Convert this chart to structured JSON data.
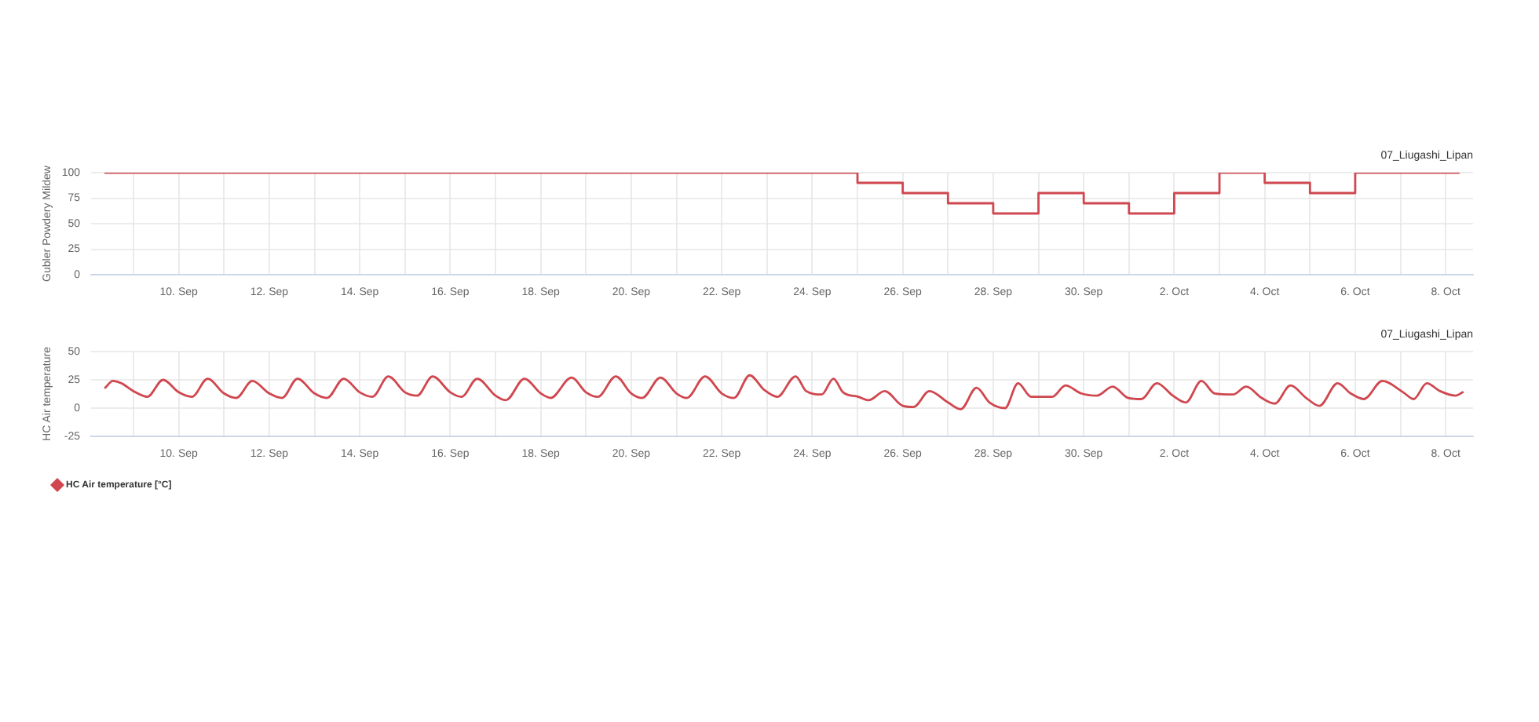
{
  "chart_data": [
    {
      "type": "step",
      "title": "07_Liugashi_Lipan",
      "ylabel": "Gubler Powdery Mildew",
      "color": "#d0474f",
      "x": [
        "--09-08T09:00",
        "--09-25",
        "--09-26",
        "--09-27",
        "--09-28",
        "--09-29",
        "--09-30",
        "--10-01",
        "--10-02",
        "--10-03",
        "--10-04",
        "--10-05",
        "--10-06",
        "--10-08T07:00"
      ],
      "values": [
        100,
        90,
        80,
        70,
        60,
        80,
        70,
        60,
        80,
        100,
        90,
        80,
        100,
        100
      ],
      "xlim": [
        "--09-08T01:30",
        "--10-08T14:30"
      ],
      "xticks": [
        {
          "value": "--09-09",
          "label": null
        },
        {
          "value": "--09-10",
          "label": "10. Sep"
        },
        {
          "value": "--09-11",
          "label": null
        },
        {
          "value": "--09-12",
          "label": "12. Sep"
        },
        {
          "value": "--09-13",
          "label": null
        },
        {
          "value": "--09-14",
          "label": "14. Sep"
        },
        {
          "value": "--09-15",
          "label": null
        },
        {
          "value": "--09-16",
          "label": "16. Sep"
        },
        {
          "value": "--09-17",
          "label": null
        },
        {
          "value": "--09-18",
          "label": "18. Sep"
        },
        {
          "value": "--09-19",
          "label": null
        },
        {
          "value": "--09-20",
          "label": "20. Sep"
        },
        {
          "value": "--09-21",
          "label": null
        },
        {
          "value": "--09-22",
          "label": "22. Sep"
        },
        {
          "value": "--09-23",
          "label": null
        },
        {
          "value": "--09-24",
          "label": "24. Sep"
        },
        {
          "value": "--09-25",
          "label": null
        },
        {
          "value": "--09-26",
          "label": "26. Sep"
        },
        {
          "value": "--09-27",
          "label": null
        },
        {
          "value": "--09-28",
          "label": "28. Sep"
        },
        {
          "value": "--09-29",
          "label": null
        },
        {
          "value": "--09-30",
          "label": "30. Sep"
        },
        {
          "value": "--10-01",
          "label": null
        },
        {
          "value": "--10-02",
          "label": "2. Oct"
        },
        {
          "value": "--10-03",
          "label": null
        },
        {
          "value": "--10-04",
          "label": "4. Oct"
        },
        {
          "value": "--10-05",
          "label": null
        },
        {
          "value": "--10-06",
          "label": "6. Oct"
        },
        {
          "value": "--10-07",
          "label": null
        },
        {
          "value": "--10-08",
          "label": "8. Oct"
        }
      ],
      "ylim": [
        0,
        100
      ],
      "yticks": [
        0,
        25,
        50,
        75,
        100
      ],
      "grid": true
    },
    {
      "type": "line",
      "title": "07_Liugashi_Lipan",
      "ylabel": "HC Air temperature",
      "series": [
        {
          "name": "HC Air temperature [°C]",
          "color": "#d0474f",
          "x": [
            "--09-08T09:00",
            "--09-08T13:00",
            "--09-08T17:30",
            "--09-09T00:00",
            "--09-09T07:20",
            "--09-09T15:40",
            "--09-10T00:00",
            "--09-10T07:00",
            "--09-10T15:20",
            "--09-11T00:00",
            "--09-11T06:30",
            "--09-11T15:00",
            "--09-12T00:00",
            "--09-12T06:45",
            "--09-12T15:00",
            "--09-13T00:00",
            "--09-13T06:40",
            "--09-13T15:30",
            "--09-14T00:00",
            "--09-14T06:45",
            "--09-14T15:10",
            "--09-15T00:00",
            "--09-15T06:25",
            "--09-15T14:40",
            "--09-16T00:00",
            "--09-16T06:00",
            "--09-16T14:20",
            "--09-17T00:00",
            "--09-17T05:30",
            "--09-17T15:20",
            "--09-18T00:00",
            "--09-18T05:15",
            "--09-18T16:20",
            "--09-19T00:00",
            "--09-19T06:15",
            "--09-19T15:50",
            "--09-20T00:00",
            "--09-20T05:50",
            "--09-20T15:30",
            "--09-21T00:00",
            "--09-21T05:30",
            "--09-21T15:10",
            "--09-22T00:00",
            "--09-22T06:30",
            "--09-22T14:50",
            "--09-22T22:35",
            "--09-23T05:30",
            "--09-23T15:10",
            "--09-23T20:50",
            "--09-24T05:00",
            "--09-24T11:15",
            "--09-24T16:20",
            "--09-25T00:30",
            "--09-25T06:00",
            "--09-25T14:25",
            "--09-26T00:00",
            "--09-26T05:45",
            "--09-26T14:10",
            "--09-27T00:00",
            "--09-27T06:45",
            "--09-27T15:10",
            "--09-27T22:00",
            "--09-28T06:15",
            "--09-28T13:10",
            "--09-28T20:10",
            "--09-29T07:20",
            "--09-29T14:20",
            "--09-29T22:35",
            "--09-30T07:00",
            "--09-30T15:20",
            "--09-30T23:35",
            "--10-01T06:30",
            "--10-01T14:50",
            "--10-01T23:15",
            "--10-02T06:10",
            "--10-02T14:25",
            "--10-02T21:25",
            "--10-03T07:10",
            "--10-03T14:10",
            "--10-03T22:20",
            "--10-04T05:20",
            "--10-04T13:40",
            "--10-04T22:00",
            "--10-05T05:00",
            "--10-05T14:40",
            "--10-05T21:35",
            "--10-06T04:35",
            "--10-06T14:25",
            "--10-07T01:25",
            "--10-07T07:00",
            "--10-07T14:00",
            "--10-07T21:00",
            "--10-08T05:15",
            "--10-08T09:00"
          ],
          "values": [
            18,
            24,
            22,
            15,
            10,
            25,
            14,
            10,
            26,
            13,
            9,
            24,
            13,
            9,
            26,
            13,
            9,
            26,
            14,
            10,
            28,
            14,
            11,
            28,
            14,
            10,
            26,
            11,
            7,
            26,
            13,
            9,
            27,
            14,
            10,
            28,
            13,
            9,
            27,
            13,
            9,
            28,
            13,
            9,
            29,
            16,
            10,
            28,
            15,
            12,
            26,
            14,
            10,
            7,
            15,
            2,
            1,
            15,
            5,
            -1,
            18,
            5,
            0,
            22,
            10,
            10,
            20,
            13,
            11,
            19,
            9,
            8,
            22,
            11,
            5,
            24,
            13,
            12,
            19,
            9,
            4,
            20,
            9,
            2,
            22,
            13,
            8,
            24,
            14,
            8,
            22,
            15,
            11,
            14
          ]
        }
      ],
      "xlim": [
        "--09-08T01:30",
        "--10-08T14:30"
      ],
      "xticks": [
        {
          "value": "--09-09",
          "label": null
        },
        {
          "value": "--09-10",
          "label": "10. Sep"
        },
        {
          "value": "--09-11",
          "label": null
        },
        {
          "value": "--09-12",
          "label": "12. Sep"
        },
        {
          "value": "--09-13",
          "label": null
        },
        {
          "value": "--09-14",
          "label": "14. Sep"
        },
        {
          "value": "--09-15",
          "label": null
        },
        {
          "value": "--09-16",
          "label": "16. Sep"
        },
        {
          "value": "--09-17",
          "label": null
        },
        {
          "value": "--09-18",
          "label": "18. Sep"
        },
        {
          "value": "--09-19",
          "label": null
        },
        {
          "value": "--09-20",
          "label": "20. Sep"
        },
        {
          "value": "--09-21",
          "label": null
        },
        {
          "value": "--09-22",
          "label": "22. Sep"
        },
        {
          "value": "--09-23",
          "label": null
        },
        {
          "value": "--09-24",
          "label": "24. Sep"
        },
        {
          "value": "--09-25",
          "label": null
        },
        {
          "value": "--09-26",
          "label": "26. Sep"
        },
        {
          "value": "--09-27",
          "label": null
        },
        {
          "value": "--09-28",
          "label": "28. Sep"
        },
        {
          "value": "--09-29",
          "label": null
        },
        {
          "value": "--09-30",
          "label": "30. Sep"
        },
        {
          "value": "--10-01",
          "label": null
        },
        {
          "value": "--10-02",
          "label": "2. Oct"
        },
        {
          "value": "--10-03",
          "label": null
        },
        {
          "value": "--10-04",
          "label": "4. Oct"
        },
        {
          "value": "--10-05",
          "label": null
        },
        {
          "value": "--10-06",
          "label": "6. Oct"
        },
        {
          "value": "--10-07",
          "label": null
        },
        {
          "value": "--10-08",
          "label": "8. Oct"
        }
      ],
      "ylim": [
        -25,
        50
      ],
      "yticks": [
        -25,
        0,
        25,
        50
      ],
      "grid": true,
      "legend": "bottom left"
    }
  ]
}
